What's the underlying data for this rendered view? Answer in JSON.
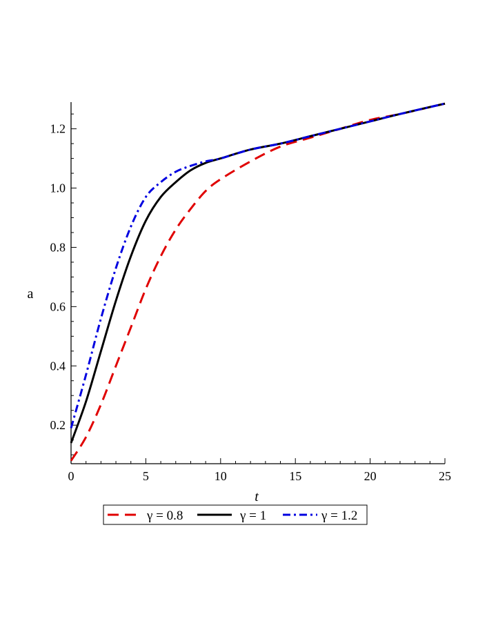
{
  "chart_data": {
    "type": "line",
    "title": "",
    "xlabel": "t",
    "ylabel": "a",
    "xlim": [
      0,
      25
    ],
    "ylim": [
      0.07,
      1.29
    ],
    "xticks": [
      0,
      5,
      10,
      15,
      20,
      25
    ],
    "yticks": [
      0.2,
      0.4,
      0.6,
      0.8,
      1.0,
      1.2
    ],
    "xtick_labels": [
      "0",
      "5",
      "10",
      "15",
      "20",
      "25"
    ],
    "ytick_labels": [
      "0.2",
      "0.4",
      "0.6",
      "0.8",
      "1.0",
      "1.2"
    ],
    "grid": false,
    "legend_position": "bottom",
    "series": [
      {
        "name": "γ = 0.8",
        "color": "#e00000",
        "dash": "dash",
        "x": [
          0,
          1,
          2,
          3,
          4,
          5,
          6,
          7,
          8,
          9,
          10,
          12,
          14,
          16,
          18,
          20,
          22,
          25
        ],
        "y": [
          0.08,
          0.16,
          0.27,
          0.4,
          0.53,
          0.66,
          0.77,
          0.86,
          0.93,
          0.99,
          1.03,
          1.09,
          1.14,
          1.17,
          1.2,
          1.23,
          1.25,
          1.285
        ]
      },
      {
        "name": "γ = 1",
        "color": "#000000",
        "dash": "solid",
        "x": [
          0,
          1,
          2,
          3,
          4,
          5,
          6,
          7,
          8,
          9,
          10,
          12,
          14,
          16,
          18,
          20,
          22,
          25
        ],
        "y": [
          0.14,
          0.28,
          0.45,
          0.62,
          0.77,
          0.89,
          0.97,
          1.02,
          1.06,
          1.085,
          1.1,
          1.13,
          1.15,
          1.175,
          1.2,
          1.225,
          1.25,
          1.285
        ]
      },
      {
        "name": "γ = 1.2",
        "color": "#0000e0",
        "dash": "dashdot",
        "x": [
          0,
          1,
          2,
          3,
          4,
          5,
          6,
          7,
          8,
          9,
          10,
          12,
          14,
          16,
          18,
          20,
          22,
          25
        ],
        "y": [
          0.19,
          0.37,
          0.56,
          0.73,
          0.87,
          0.97,
          1.02,
          1.055,
          1.075,
          1.09,
          1.1,
          1.13,
          1.15,
          1.175,
          1.2,
          1.225,
          1.25,
          1.285
        ]
      }
    ]
  }
}
